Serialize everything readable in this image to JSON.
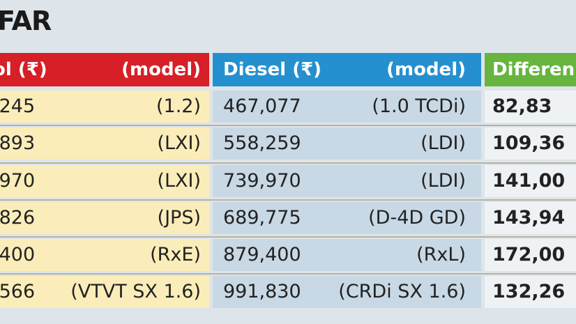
{
  "header": {
    "title": "FAR"
  },
  "table": {
    "columns": [
      "ol (₹)",
      "(model)",
      "Diesel (₹)",
      "(model)",
      "Differen"
    ],
    "rows": [
      [
        ",245",
        "(1.2)",
        "467,077",
        "(1.0 TCDi)",
        "82,83"
      ],
      [
        ",893",
        "(LXI)",
        "558,259",
        "(LDI)",
        "109,36"
      ],
      [
        ",970",
        "(LXI)",
        "739,970",
        "(LDI)",
        "141,00"
      ],
      [
        ",826",
        "(JPS)",
        "689,775",
        "(D-4D GD)",
        "143,94"
      ],
      [
        ",400",
        "(RxE)",
        "879,400",
        "(RxL)",
        "172,00"
      ],
      [
        ",566",
        "(VTVT SX 1.6)",
        "991,830",
        "(CRDi SX 1.6)",
        "132,26"
      ]
    ]
  }
}
